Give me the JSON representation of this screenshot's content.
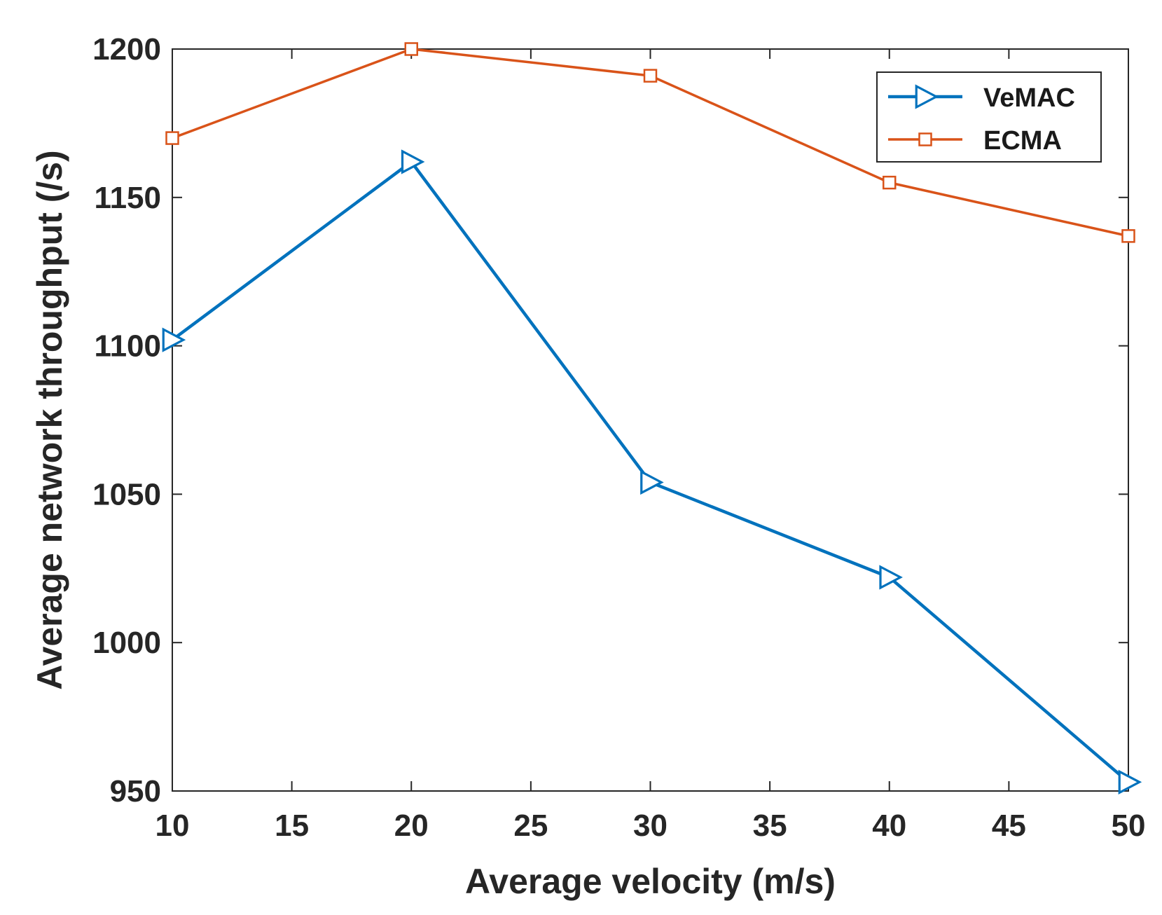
{
  "chart_data": {
    "type": "line",
    "title": "",
    "xlabel": "Average velocity (m/s)",
    "ylabel": "Average network throughput (/s)",
    "x": [
      10,
      20,
      30,
      40,
      50
    ],
    "xlim": [
      10,
      50
    ],
    "ylim": [
      950,
      1200
    ],
    "xticks": [
      10,
      15,
      20,
      25,
      30,
      35,
      40,
      45,
      50
    ],
    "yticks": [
      950,
      1000,
      1050,
      1100,
      1150,
      1200
    ],
    "grid": false,
    "legend_position": "top-right",
    "series": [
      {
        "name": "VeMAC",
        "marker": "triangle-right",
        "color": "#0072BD",
        "values": [
          1102,
          1162,
          1054,
          1022,
          953
        ]
      },
      {
        "name": "ECMA",
        "marker": "square",
        "color": "#D95319",
        "values": [
          1170,
          1200,
          1191,
          1155,
          1137
        ]
      }
    ]
  }
}
